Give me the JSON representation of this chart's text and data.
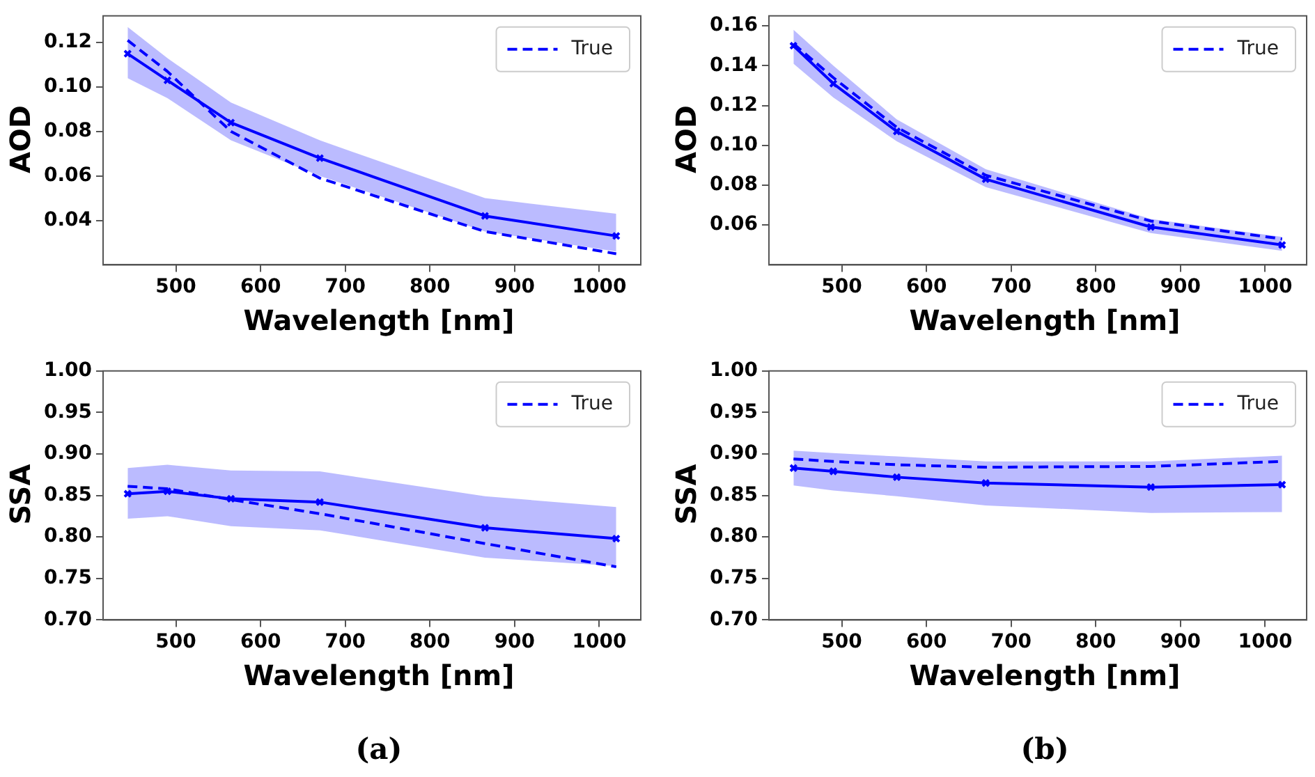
{
  "chart_data": [
    {
      "type": "line",
      "ylabel": "AOD",
      "xlabel": "Wavelength [nm]",
      "x": [
        443,
        490,
        565,
        670,
        865,
        1020
      ],
      "xlim": [
        414,
        1049
      ],
      "xticks": [
        500,
        600,
        700,
        800,
        900,
        1000
      ],
      "ylim": [
        0.02,
        0.132
      ],
      "yticks": [
        0.04,
        0.06,
        0.08,
        {
          "value": 0.1,
          "label": "0.10"
        },
        0.12
      ],
      "grid": false,
      "legend": "top right",
      "series": [
        {
          "name": "True",
          "color": "#0000ff",
          "line_style": "dashed",
          "marker": "none",
          "values": [
            0.121,
            0.107,
            0.08,
            0.059,
            0.035,
            0.025
          ]
        },
        {
          "color": "#0000ff",
          "line_style": "solid",
          "marker": "cross",
          "values": [
            0.115,
            0.103,
            0.084,
            0.068,
            0.042,
            0.033
          ],
          "lower": [
            0.104,
            0.095,
            0.076,
            0.06,
            0.035,
            0.026
          ],
          "upper": [
            0.127,
            0.113,
            0.093,
            0.076,
            0.05,
            0.043
          ]
        }
      ]
    },
    {
      "type": "line",
      "ylabel": "AOD",
      "xlabel": "Wavelength [nm]",
      "x": [
        443,
        490,
        565,
        670,
        865,
        1020
      ],
      "xlim": [
        414,
        1049
      ],
      "xticks": [
        500,
        600,
        700,
        800,
        900,
        1000
      ],
      "ylim": [
        0.04,
        0.165
      ],
      "yticks": [
        0.06,
        0.08,
        {
          "value": 0.1,
          "label": "0.10"
        },
        0.12,
        0.14,
        0.16
      ],
      "grid": false,
      "legend": "top right",
      "series": [
        {
          "name": "True",
          "color": "#0000ff",
          "line_style": "dashed",
          "marker": "none",
          "values": [
            0.151,
            0.134,
            0.109,
            0.085,
            0.062,
            0.053
          ]
        },
        {
          "color": "#0000ff",
          "line_style": "solid",
          "marker": "cross",
          "values": [
            0.15,
            0.131,
            0.107,
            0.083,
            0.059,
            0.05
          ],
          "lower": [
            0.141,
            0.124,
            0.102,
            0.079,
            0.056,
            0.047
          ],
          "upper": [
            0.158,
            0.14,
            0.113,
            0.088,
            0.063,
            0.054
          ]
        }
      ]
    },
    {
      "type": "line",
      "ylabel": "SSA",
      "xlabel": "Wavelength [nm]",
      "x": [
        443,
        490,
        565,
        670,
        865,
        1020
      ],
      "xlim": [
        414,
        1049
      ],
      "xticks": [
        500,
        600,
        700,
        800,
        900,
        1000
      ],
      "ylim": [
        0.7,
        1.0
      ],
      "yticks": [
        {
          "value": 0.7,
          "label": "0.70"
        },
        0.75,
        {
          "value": 0.8,
          "label": "0.80"
        },
        0.85,
        {
          "value": 0.9,
          "label": "0.90"
        },
        0.95,
        {
          "value": 1.0,
          "label": "1.00"
        }
      ],
      "grid": false,
      "legend": "top right",
      "annotations": [
        "(a)"
      ],
      "series": [
        {
          "name": "True",
          "color": "#0000ff",
          "line_style": "dashed",
          "marker": "none",
          "values": [
            0.861,
            0.858,
            0.845,
            0.828,
            0.792,
            0.764
          ]
        },
        {
          "color": "#0000ff",
          "line_style": "solid",
          "marker": "cross",
          "values": [
            0.852,
            0.855,
            0.846,
            0.842,
            0.811,
            0.798
          ],
          "lower": [
            0.822,
            0.825,
            0.813,
            0.808,
            0.775,
            0.765
          ],
          "upper": [
            0.883,
            0.887,
            0.88,
            0.879,
            0.849,
            0.836
          ]
        }
      ]
    },
    {
      "type": "line",
      "ylabel": "SSA",
      "xlabel": "Wavelength [nm]",
      "x": [
        443,
        490,
        565,
        670,
        865,
        1020
      ],
      "xlim": [
        414,
        1049
      ],
      "xticks": [
        500,
        600,
        700,
        800,
        900,
        1000
      ],
      "ylim": [
        0.7,
        1.0
      ],
      "yticks": [
        {
          "value": 0.7,
          "label": "0.70"
        },
        0.75,
        {
          "value": 0.8,
          "label": "0.80"
        },
        0.85,
        {
          "value": 0.9,
          "label": "0.90"
        },
        0.95,
        {
          "value": 1.0,
          "label": "1.00"
        }
      ],
      "grid": false,
      "legend": "top right",
      "annotations": [
        "(b)"
      ],
      "series": [
        {
          "name": "True",
          "color": "#0000ff",
          "line_style": "dashed",
          "marker": "none",
          "values": [
            0.894,
            0.891,
            0.887,
            0.884,
            0.885,
            0.891
          ]
        },
        {
          "color": "#0000ff",
          "line_style": "solid",
          "marker": "cross",
          "values": [
            0.883,
            0.879,
            0.872,
            0.865,
            0.86,
            0.863
          ],
          "lower": [
            0.862,
            0.856,
            0.849,
            0.838,
            0.829,
            0.83
          ],
          "upper": [
            0.904,
            0.901,
            0.897,
            0.891,
            0.891,
            0.898
          ]
        }
      ]
    }
  ]
}
